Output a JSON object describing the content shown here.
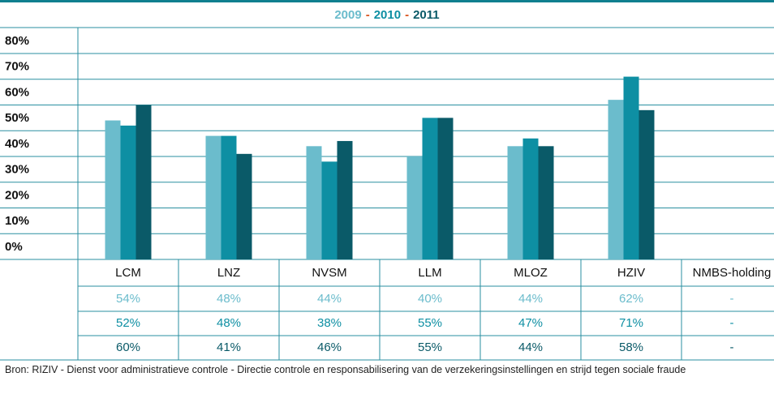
{
  "chart_data": {
    "type": "bar",
    "legend_separator": "-",
    "categories": [
      "LCM",
      "LNZ",
      "NVSM",
      "LLM",
      "MLOZ",
      "HZIV",
      "NMBS-holding"
    ],
    "series": [
      {
        "name": "2009",
        "color": "#6bbccc",
        "values": [
          54,
          48,
          44,
          40,
          44,
          62,
          null
        ],
        "value_labels": [
          "54%",
          "48%",
          "44%",
          "40%",
          "44%",
          "62%",
          "-"
        ]
      },
      {
        "name": "2010",
        "color": "#0e8fa3",
        "values": [
          52,
          48,
          38,
          55,
          47,
          71,
          null
        ],
        "value_labels": [
          "52%",
          "48%",
          "38%",
          "55%",
          "47%",
          "71%",
          "-"
        ]
      },
      {
        "name": "2011",
        "color": "#0a5a68",
        "values": [
          60,
          41,
          46,
          55,
          44,
          58,
          null
        ],
        "value_labels": [
          "60%",
          "41%",
          "46%",
          "55%",
          "44%",
          "58%",
          "-"
        ]
      }
    ],
    "ylim": [
      0,
      80
    ],
    "yticks": [
      {
        "value": 0,
        "label": "0%"
      },
      {
        "value": 10,
        "label": "10%"
      },
      {
        "value": 20,
        "label": "20%"
      },
      {
        "value": 30,
        "label": "30%"
      },
      {
        "value": 40,
        "label": "40%"
      },
      {
        "value": 50,
        "label": "50%"
      },
      {
        "value": 60,
        "label": "60%"
      },
      {
        "value": 70,
        "label": "70%"
      },
      {
        "value": 80,
        "label": "80%"
      }
    ],
    "grid": true,
    "source": "Bron: RIZIV - Dienst voor administratieve controle - Directie controle en responsabilisering van de verzekeringsinstellingen en strijd tegen sociale fraude"
  }
}
